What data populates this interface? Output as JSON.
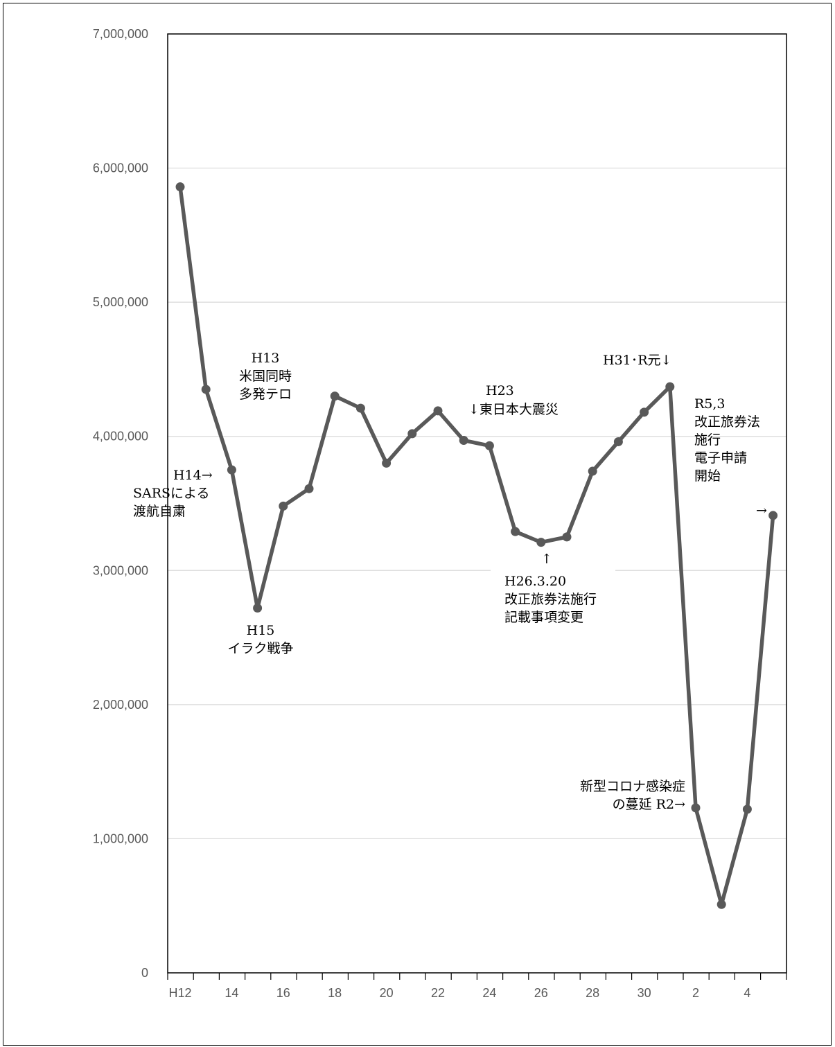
{
  "chart_data": {
    "type": "line",
    "title": "",
    "xlabel": "",
    "ylabel": "",
    "ylim": [
      0,
      7000000
    ],
    "y_ticks": [
      0,
      1000000,
      2000000,
      3000000,
      4000000,
      5000000,
      6000000,
      7000000
    ],
    "y_tick_labels": [
      "0",
      "1,000,000",
      "2,000,000",
      "3,000,000",
      "4,000,000",
      "5,000,000",
      "6,000,000",
      "7,000,000"
    ],
    "x_tick_labels": [
      "H12",
      "14",
      "16",
      "18",
      "20",
      "22",
      "24",
      "26",
      "28",
      "30",
      "2",
      "4"
    ],
    "x_tick_positions": [
      0,
      2,
      4,
      6,
      8,
      10,
      12,
      14,
      16,
      18,
      20,
      22
    ],
    "grid": "horizontal",
    "color": "#595959",
    "series": [
      {
        "x": [
          0,
          1,
          2,
          3,
          4,
          5,
          6,
          7,
          8,
          9,
          10,
          11,
          12,
          13,
          14,
          15,
          16,
          17,
          18,
          19,
          20,
          21,
          22,
          23
        ],
        "values": [
          5860000,
          4350000,
          3750000,
          2720000,
          3480000,
          3610000,
          4300000,
          4210000,
          3800000,
          4020000,
          4190000,
          3970000,
          3930000,
          3290000,
          3210000,
          3250000,
          3740000,
          3960000,
          4180000,
          4370000,
          1230000,
          510000,
          1220000,
          3410000
        ]
      }
    ],
    "annotations": [
      {
        "id": "h13",
        "lines": [
          "H13",
          "米国同時",
          "多発テロ"
        ]
      },
      {
        "id": "h14",
        "lines": [
          "H14→",
          "SARSによる",
          "渡航自粛"
        ]
      },
      {
        "id": "h15",
        "lines": [
          "H15",
          "イラク戦争"
        ]
      },
      {
        "id": "h23",
        "lines": [
          "H23",
          "↓東日本大震災"
        ]
      },
      {
        "id": "h26",
        "lines": [
          "↑",
          "H26.3.20",
          "改正旅券法施行",
          "記載事項変更"
        ]
      },
      {
        "id": "h31",
        "lines": [
          "H31･R元↓"
        ]
      },
      {
        "id": "r5",
        "lines": [
          "R5,3",
          "改正旅券法",
          "施行",
          "電子申請",
          "開始"
        ]
      },
      {
        "id": "r5arrow",
        "lines": [
          "→"
        ]
      },
      {
        "id": "r2",
        "lines": [
          "新型コロナ感染症",
          "の蔓延 R2→"
        ]
      }
    ]
  }
}
